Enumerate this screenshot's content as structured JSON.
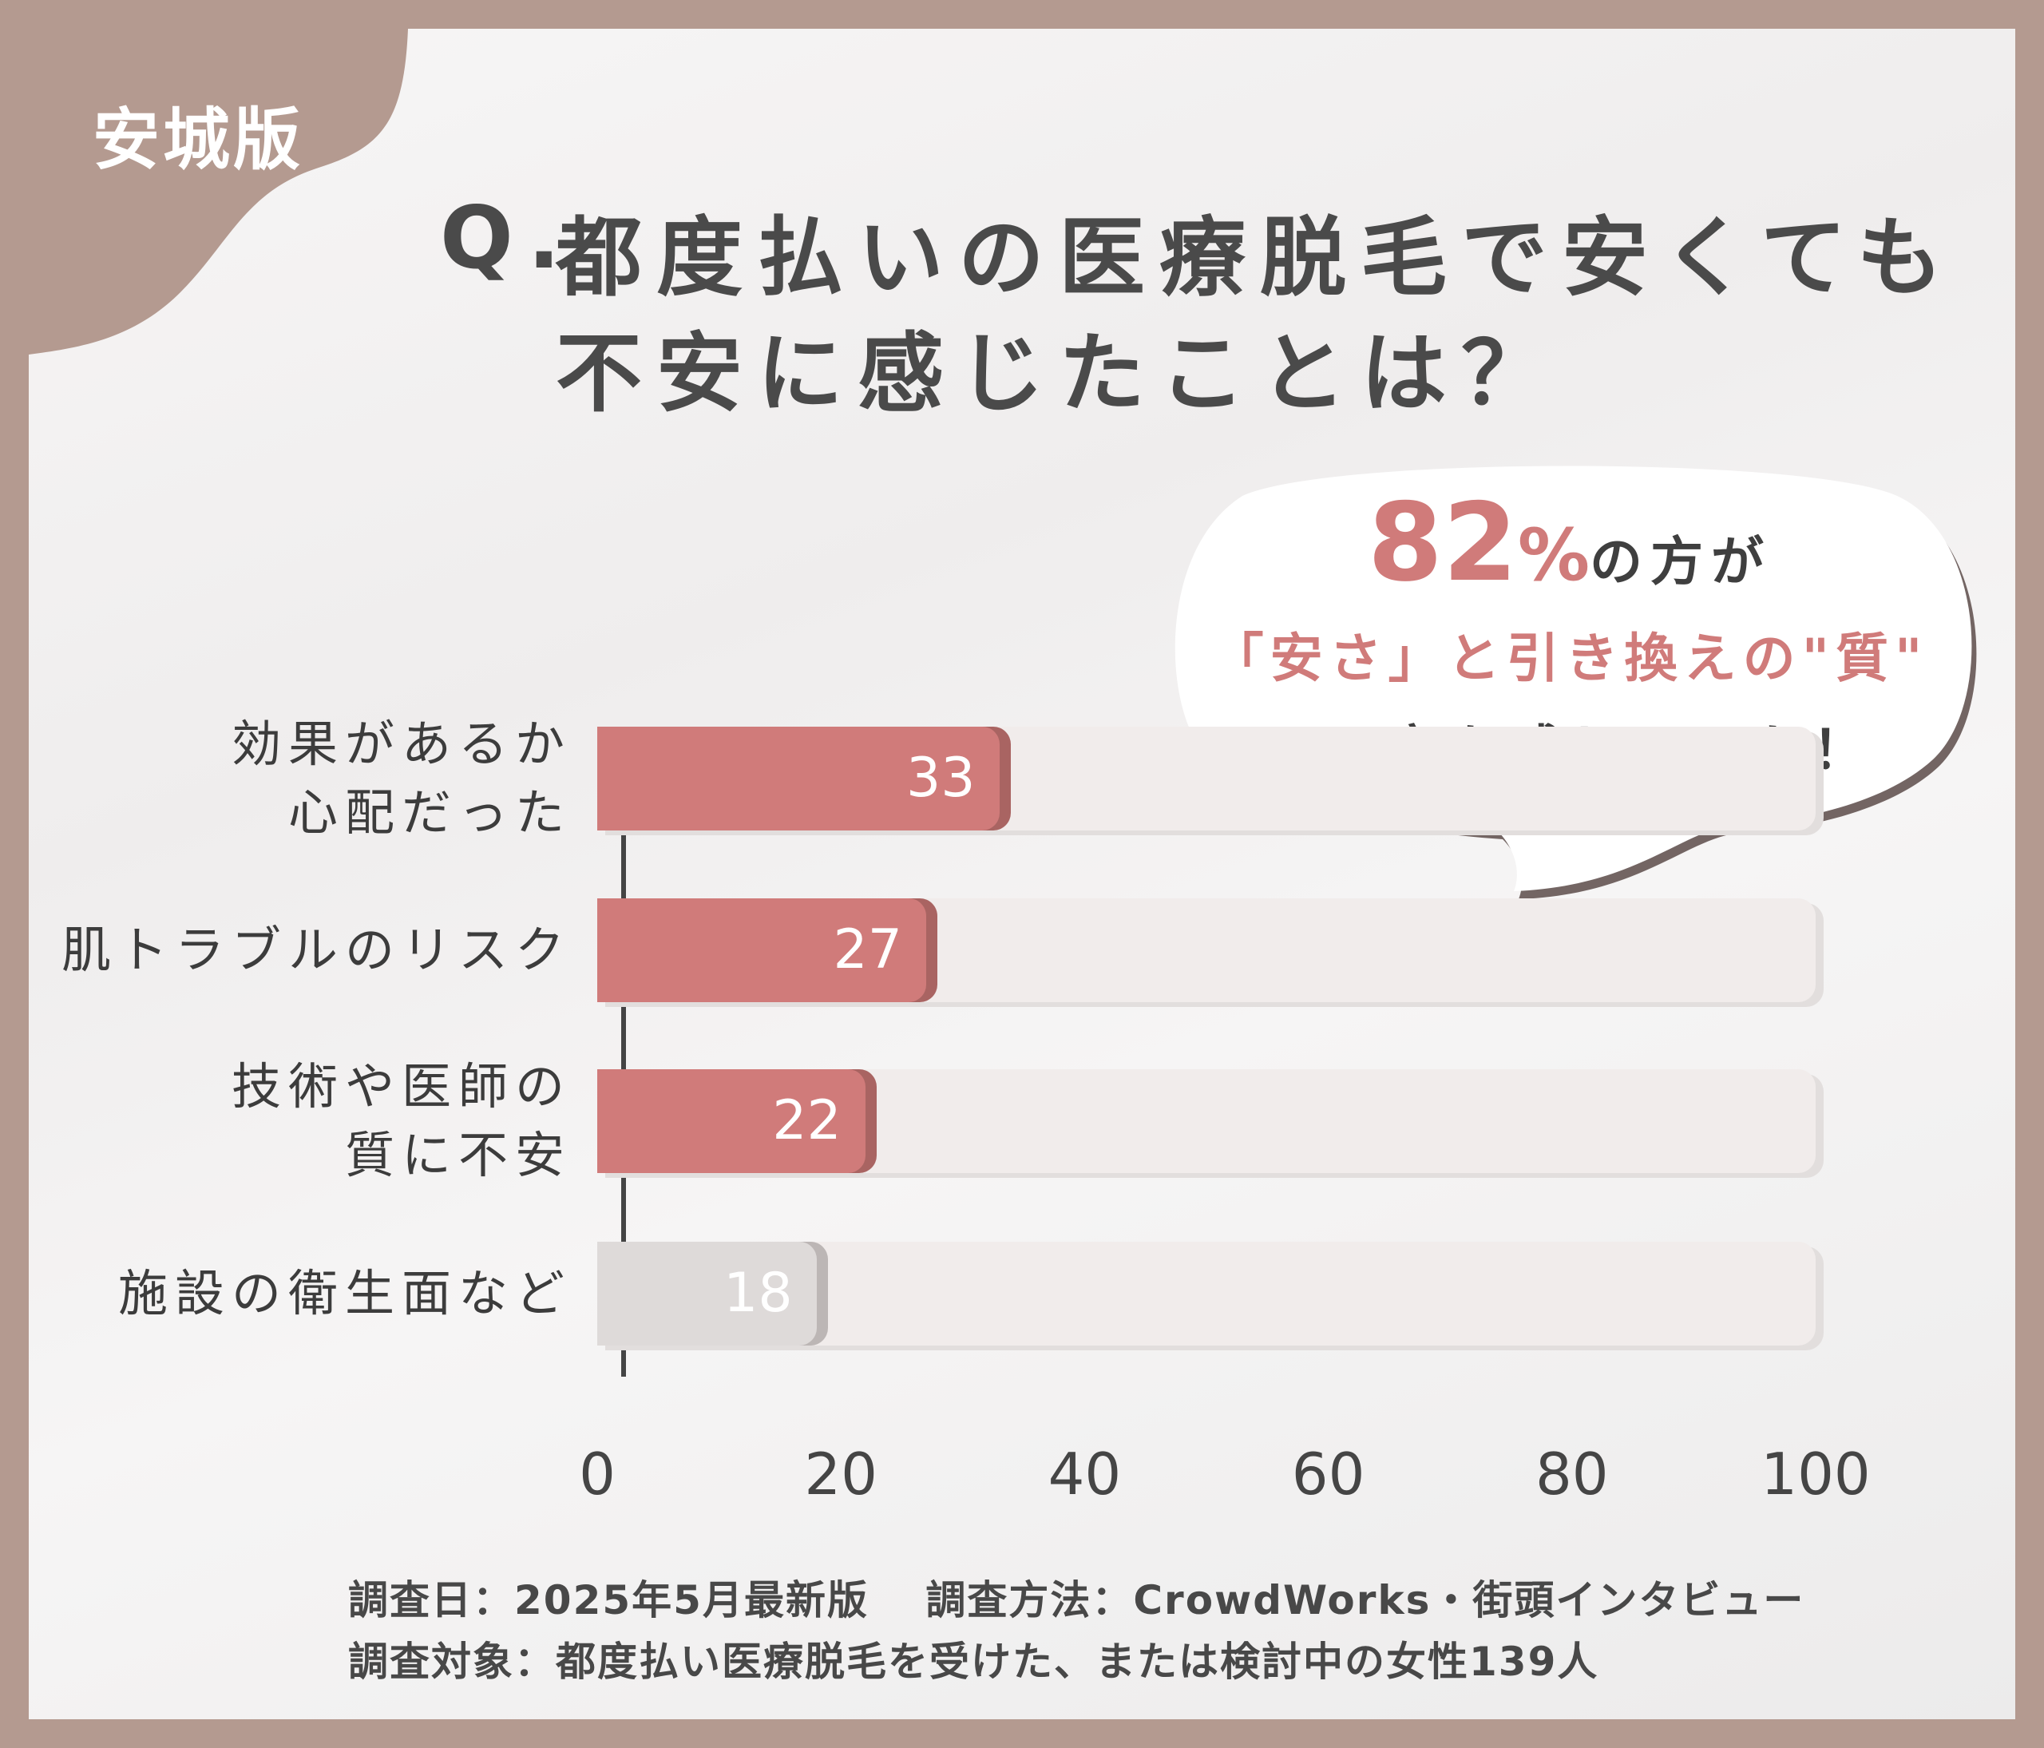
{
  "badge": "安城版",
  "title": {
    "prefix": "Q.",
    "line1": "都度払いの医療脱毛で安くても",
    "line2": "不安に感じたことは？"
  },
  "callout": {
    "percent": "82",
    "percent_unit": "%",
    "line1_rest": "の方が",
    "line2_highlight": "「安さ」と引き換えの\"質\"",
    "line3": "に不安を感じていた！"
  },
  "chart_data": {
    "type": "bar",
    "orientation": "horizontal",
    "categories": [
      [
        "効果があるか",
        "心配だった"
      ],
      [
        "肌トラブルのリスク"
      ],
      [
        "技術や医師の",
        "質に不安"
      ],
      [
        "施設の衛生面など"
      ]
    ],
    "values": [
      33,
      27,
      22,
      18
    ],
    "value_labels": [
      "33",
      "27",
      "22",
      "18"
    ],
    "xlim": [
      0,
      100
    ],
    "x_ticks": [
      "0",
      "20",
      "40",
      "60",
      "80",
      "100"
    ],
    "grid": false,
    "colors": {
      "highlight": "#d07b7a",
      "highlight_shadow": "#a96462",
      "muted": "#dedad9",
      "muted_shadow": "#bcb6b5",
      "track": "#f1eceb"
    },
    "bar_colors": [
      "highlight",
      "highlight",
      "highlight",
      "muted"
    ]
  },
  "footnotes": {
    "line1": "調査日：2025年5月最新版　 調査方法：CrowdWorks・街頭インタビュー",
    "line2": "調査対象：都度払い医療脱毛を受けた、または検討中の女性139人"
  },
  "colors": {
    "frame": "#b49a90",
    "title": "#4a4a4a",
    "accent": "#d07b7a"
  }
}
